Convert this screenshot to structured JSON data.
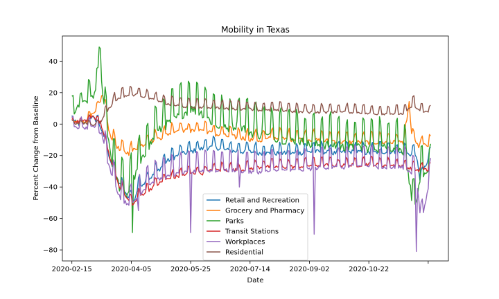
{
  "chart_data": {
    "type": "line",
    "title": "Mobility in Texas",
    "xlabel": "Date",
    "ylabel": "Percent Change from Baseline",
    "ylim": [
      -87,
      56
    ],
    "xlim": [
      "2020-02-07",
      "2020-12-28"
    ],
    "grid": false,
    "legend_position": "bottom-center",
    "x_ticks": [
      "2020-02-15",
      "2020-04-05",
      "2020-05-25",
      "2020-07-14",
      "2020-09-02",
      "2020-10-22",
      ""
    ],
    "y_ticks": [
      40,
      20,
      0,
      -20,
      -40,
      -60,
      -80
    ],
    "x_start": "2020-02-15",
    "x_end": "2020-12-13",
    "series": [
      {
        "name": "Retail and Recreation",
        "color": "#1f77b4",
        "keypoints": [
          [
            0,
            3
          ],
          [
            8,
            0
          ],
          [
            16,
            5
          ],
          [
            22,
            3
          ],
          [
            26,
            -5
          ],
          [
            30,
            -15
          ],
          [
            36,
            -30
          ],
          [
            44,
            -42
          ],
          [
            52,
            -48
          ],
          [
            56,
            -38
          ],
          [
            62,
            -35
          ],
          [
            70,
            -30
          ],
          [
            80,
            -22
          ],
          [
            90,
            -18
          ],
          [
            100,
            -16
          ],
          [
            110,
            -14
          ],
          [
            120,
            -13
          ],
          [
            130,
            -15
          ],
          [
            140,
            -16
          ],
          [
            150,
            -16
          ],
          [
            160,
            -17
          ],
          [
            170,
            -17
          ],
          [
            180,
            -17
          ],
          [
            190,
            -17
          ],
          [
            200,
            -16
          ],
          [
            210,
            -16
          ],
          [
            220,
            -17
          ],
          [
            230,
            -16
          ],
          [
            240,
            -16
          ],
          [
            250,
            -17
          ],
          [
            260,
            -16
          ],
          [
            270,
            -16
          ],
          [
            280,
            -17
          ],
          [
            290,
            -18
          ],
          [
            293,
            -35
          ],
          [
            296,
            -28
          ],
          [
            303,
            -17
          ]
        ],
        "weekly_amp": 4,
        "noise": 1.5
      },
      {
        "name": "Grocery and Pharmacy",
        "color": "#ff7f0e",
        "keypoints": [
          [
            0,
            2
          ],
          [
            10,
            2
          ],
          [
            20,
            8
          ],
          [
            26,
            20
          ],
          [
            32,
            -5
          ],
          [
            40,
            -15
          ],
          [
            48,
            -17
          ],
          [
            56,
            -13
          ],
          [
            64,
            -10
          ],
          [
            72,
            -8
          ],
          [
            80,
            -5
          ],
          [
            90,
            -2
          ],
          [
            100,
            -3
          ],
          [
            110,
            -2
          ],
          [
            120,
            -5
          ],
          [
            130,
            -6
          ],
          [
            140,
            -7
          ],
          [
            150,
            -8
          ],
          [
            160,
            -9
          ],
          [
            170,
            -7
          ],
          [
            180,
            -8
          ],
          [
            190,
            -8
          ],
          [
            200,
            -8
          ],
          [
            210,
            -9
          ],
          [
            220,
            -9
          ],
          [
            230,
            -10
          ],
          [
            240,
            -10
          ],
          [
            250,
            -10
          ],
          [
            260,
            -10
          ],
          [
            270,
            -10
          ],
          [
            280,
            -10
          ],
          [
            284,
            15
          ],
          [
            286,
            -5
          ],
          [
            290,
            -12
          ],
          [
            303,
            -12
          ]
        ],
        "weekly_amp": 4,
        "noise": 1.5
      },
      {
        "name": "Parks",
        "color": "#2ca02c",
        "keypoints": [
          [
            0,
            10
          ],
          [
            5,
            12
          ],
          [
            10,
            15
          ],
          [
            15,
            20
          ],
          [
            20,
            22
          ],
          [
            24,
            40
          ],
          [
            28,
            10
          ],
          [
            34,
            -20
          ],
          [
            40,
            -35
          ],
          [
            46,
            -40
          ],
          [
            52,
            -30
          ],
          [
            58,
            -20
          ],
          [
            64,
            -10
          ],
          [
            72,
            0
          ],
          [
            80,
            5
          ],
          [
            90,
            10
          ],
          [
            100,
            15
          ],
          [
            110,
            12
          ],
          [
            120,
            5
          ],
          [
            130,
            2
          ],
          [
            140,
            5
          ],
          [
            150,
            0
          ],
          [
            160,
            -2
          ],
          [
            170,
            -3
          ],
          [
            180,
            -5
          ],
          [
            190,
            -5
          ],
          [
            200,
            -8
          ],
          [
            210,
            -8
          ],
          [
            220,
            -8
          ],
          [
            230,
            -10
          ],
          [
            240,
            -10
          ],
          [
            250,
            -10
          ],
          [
            260,
            -10
          ],
          [
            270,
            -10
          ],
          [
            280,
            -12
          ],
          [
            288,
            -50
          ],
          [
            294,
            -30
          ],
          [
            303,
            -25
          ]
        ],
        "weekly_amp": 13,
        "noise": 3
      },
      {
        "name": "Transit Stations",
        "color": "#d62728",
        "keypoints": [
          [
            0,
            2
          ],
          [
            10,
            2
          ],
          [
            18,
            5
          ],
          [
            24,
            2
          ],
          [
            28,
            -10
          ],
          [
            34,
            -25
          ],
          [
            40,
            -38
          ],
          [
            46,
            -46
          ],
          [
            52,
            -50
          ],
          [
            56,
            -45
          ],
          [
            62,
            -42
          ],
          [
            70,
            -38
          ],
          [
            80,
            -34
          ],
          [
            90,
            -32
          ],
          [
            100,
            -30
          ],
          [
            110,
            -30
          ],
          [
            120,
            -28
          ],
          [
            130,
            -28
          ],
          [
            140,
            -28
          ],
          [
            150,
            -27
          ],
          [
            160,
            -26
          ],
          [
            170,
            -26
          ],
          [
            180,
            -26
          ],
          [
            190,
            -26
          ],
          [
            200,
            -25
          ],
          [
            210,
            -25
          ],
          [
            220,
            -25
          ],
          [
            230,
            -25
          ],
          [
            240,
            -25
          ],
          [
            250,
            -24
          ],
          [
            260,
            -25
          ],
          [
            270,
            -25
          ],
          [
            280,
            -26
          ],
          [
            290,
            -28
          ],
          [
            303,
            -28
          ]
        ],
        "weekly_amp": 3,
        "noise": 1.2
      },
      {
        "name": "Workplaces",
        "color": "#9467bd",
        "keypoints": [
          [
            0,
            0
          ],
          [
            10,
            -1
          ],
          [
            20,
            0
          ],
          [
            26,
            -5
          ],
          [
            30,
            -20
          ],
          [
            36,
            -35
          ],
          [
            42,
            -45
          ],
          [
            50,
            -48
          ],
          [
            56,
            -42
          ],
          [
            64,
            -35
          ],
          [
            72,
            -32
          ],
          [
            80,
            -30
          ],
          [
            90,
            -28
          ],
          [
            100,
            -27
          ],
          [
            110,
            -26
          ],
          [
            120,
            -26
          ],
          [
            130,
            -26
          ],
          [
            140,
            -26
          ],
          [
            150,
            -27
          ],
          [
            160,
            -27
          ],
          [
            170,
            -26
          ],
          [
            180,
            -26
          ],
          [
            190,
            -26
          ],
          [
            200,
            -25
          ],
          [
            210,
            -24
          ],
          [
            220,
            -24
          ],
          [
            230,
            -24
          ],
          [
            240,
            -23
          ],
          [
            250,
            -23
          ],
          [
            260,
            -24
          ],
          [
            270,
            -24
          ],
          [
            280,
            -24
          ],
          [
            290,
            -30
          ],
          [
            294,
            -60
          ],
          [
            303,
            -26
          ]
        ],
        "weekly_amp": 9,
        "noise": 1.2
      },
      {
        "name": "Residential",
        "color": "#8c564b",
        "keypoints": [
          [
            0,
            1
          ],
          [
            10,
            1
          ],
          [
            18,
            0
          ],
          [
            24,
            2
          ],
          [
            30,
            10
          ],
          [
            36,
            16
          ],
          [
            42,
            19
          ],
          [
            50,
            20
          ],
          [
            56,
            20
          ],
          [
            64,
            18
          ],
          [
            72,
            16
          ],
          [
            80,
            14
          ],
          [
            90,
            13
          ],
          [
            100,
            12
          ],
          [
            110,
            12
          ],
          [
            120,
            12
          ],
          [
            130,
            11
          ],
          [
            140,
            11
          ],
          [
            150,
            11
          ],
          [
            160,
            10
          ],
          [
            170,
            10
          ],
          [
            180,
            10
          ],
          [
            190,
            9
          ],
          [
            200,
            9
          ],
          [
            210,
            9
          ],
          [
            220,
            9
          ],
          [
            230,
            9
          ],
          [
            240,
            9
          ],
          [
            250,
            8
          ],
          [
            260,
            8
          ],
          [
            270,
            8
          ],
          [
            280,
            8
          ],
          [
            288,
            14
          ],
          [
            292,
            10
          ],
          [
            303,
            8
          ]
        ],
        "weekly_amp": 3.5,
        "noise": 0.8
      }
    ],
    "spikes": [
      {
        "series": 4,
        "day": 100,
        "value": -69
      },
      {
        "series": 4,
        "day": 141,
        "value": -40
      },
      {
        "series": 4,
        "day": 204,
        "value": -70
      },
      {
        "series": 4,
        "day": 290,
        "value": -81
      },
      {
        "series": 2,
        "day": 51,
        "value": -69
      },
      {
        "series": 2,
        "day": 23,
        "value": 49
      },
      {
        "series": 2,
        "day": 24,
        "value": 48
      },
      {
        "series": 4,
        "day": 56,
        "value": -55
      }
    ]
  }
}
